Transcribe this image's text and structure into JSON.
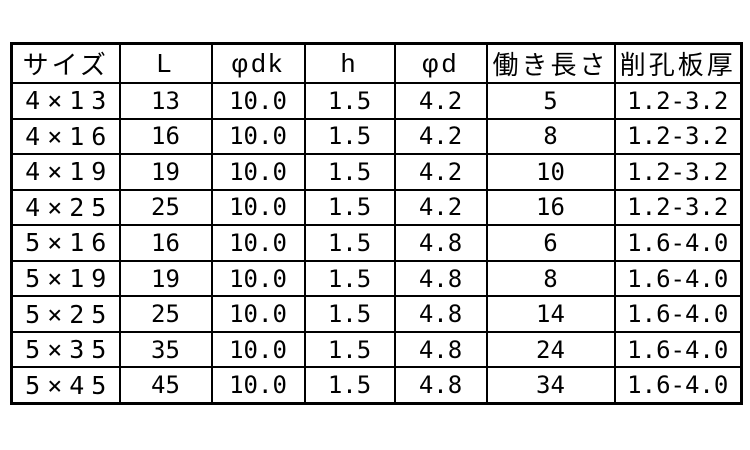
{
  "page": {
    "background_color": "#ffffff",
    "border_color": "#000000",
    "text_color": "#000000"
  },
  "table": {
    "headers": [
      "サイズ",
      "L",
      "φdk",
      "h",
      "φd",
      "働き長さ",
      "削孔板厚"
    ],
    "rows": [
      [
        "4×13",
        "13",
        "10.0",
        "1.5",
        "4.2",
        "5",
        "1.2-3.2"
      ],
      [
        "4×16",
        "16",
        "10.0",
        "1.5",
        "4.2",
        "8",
        "1.2-3.2"
      ],
      [
        "4×19",
        "19",
        "10.0",
        "1.5",
        "4.2",
        "10",
        "1.2-3.2"
      ],
      [
        "4×25",
        "25",
        "10.0",
        "1.5",
        "4.2",
        "16",
        "1.2-3.2"
      ],
      [
        "5×16",
        "16",
        "10.0",
        "1.5",
        "4.8",
        "6",
        "1.6-4.0"
      ],
      [
        "5×19",
        "19",
        "10.0",
        "1.5",
        "4.8",
        "8",
        "1.6-4.0"
      ],
      [
        "5×25",
        "25",
        "10.0",
        "1.5",
        "4.8",
        "14",
        "1.6-4.0"
      ],
      [
        "5×35",
        "35",
        "10.0",
        "1.5",
        "4.8",
        "24",
        "1.6-4.0"
      ],
      [
        "5×45",
        "45",
        "10.0",
        "1.5",
        "4.8",
        "34",
        "1.6-4.0"
      ]
    ]
  }
}
